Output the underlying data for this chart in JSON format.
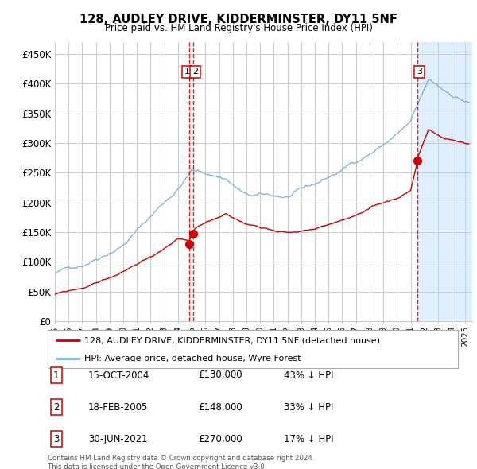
{
  "title": "128, AUDLEY DRIVE, KIDDERMINSTER, DY11 5NF",
  "subtitle": "Price paid vs. HM Land Registry's House Price Index (HPI)",
  "ylabel_ticks": [
    "£0",
    "£50K",
    "£100K",
    "£150K",
    "£200K",
    "£250K",
    "£300K",
    "£350K",
    "£400K",
    "£450K"
  ],
  "ytick_values": [
    0,
    50000,
    100000,
    150000,
    200000,
    250000,
    300000,
    350000,
    400000,
    450000
  ],
  "ylim": [
    0,
    470000
  ],
  "xlim_start": 1995.0,
  "xlim_end": 2025.5,
  "sale_dates": [
    2004.79,
    2005.12,
    2021.5
  ],
  "sale_prices": [
    130000,
    148000,
    270000
  ],
  "sale_labels": [
    "1",
    "2",
    "3"
  ],
  "vline_color": "#dd0000",
  "sale_marker_color": "#cc0000",
  "legend_line1": "128, AUDLEY DRIVE, KIDDERMINSTER, DY11 5NF (detached house)",
  "legend_line2": "HPI: Average price, detached house, Wyre Forest",
  "table_rows": [
    [
      "1",
      "15-OCT-2004",
      "£130,000",
      "43% ↓ HPI"
    ],
    [
      "2",
      "18-FEB-2005",
      "£148,000",
      "33% ↓ HPI"
    ],
    [
      "3",
      "30-JUN-2021",
      "£270,000",
      "17% ↓ HPI"
    ]
  ],
  "footnote": "Contains HM Land Registry data © Crown copyright and database right 2024.\nThis data is licensed under the Open Government Licence v3.0.",
  "hpi_color": "#7bafd4",
  "price_color": "#cc0000",
  "grid_color": "#cccccc",
  "background_color": "#ffffff",
  "shade_color": "#ddeeff",
  "shade_start": 2021.5
}
